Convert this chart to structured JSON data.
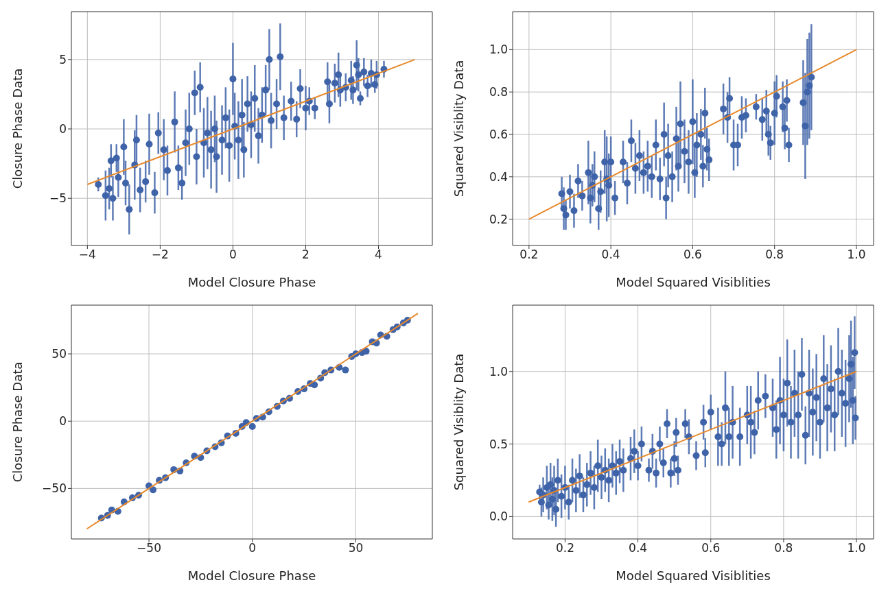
{
  "chart_data": [
    {
      "type": "scatter",
      "xlabel": "Model Closure Phase",
      "ylabel": "Closure Phase Data",
      "xlim": [
        -4.44,
        5.48
      ],
      "ylim": [
        -8.4,
        8.45
      ],
      "xticks": [
        {
          "value": -4,
          "label": "−4"
        },
        {
          "value": -2,
          "label": "−2"
        },
        0,
        2,
        4
      ],
      "yticks": [
        {
          "value": -5,
          "label": "−5"
        },
        0,
        5
      ],
      "grid": true,
      "marker": "circle",
      "series": [
        {
          "color": "#3f63a8",
          "x": [
            -3.7,
            -3.5,
            -3.4,
            -3.35,
            -3.3,
            -3.2,
            -3.15,
            -3.0,
            -2.95,
            -2.85,
            -2.7,
            -2.65,
            -2.55,
            -2.4,
            -2.3,
            -2.15,
            -2.05,
            -1.9,
            -1.8,
            -1.6,
            -1.5,
            -1.4,
            -1.3,
            -1.2,
            -1.05,
            -0.9,
            -1.0,
            -0.8,
            -0.7,
            -0.6,
            -0.5,
            -0.45,
            -0.3,
            -0.2,
            -0.1,
            0.0,
            0.05,
            0.15,
            0.25,
            0.3,
            0.4,
            0.5,
            0.6,
            0.7,
            0.8,
            0.9,
            1.0,
            1.05,
            1.2,
            1.3,
            1.4,
            1.6,
            1.75,
            1.85,
            2.0,
            2.1,
            2.25,
            2.6,
            2.65,
            2.8,
            2.9,
            2.95,
            3.1,
            3.25,
            3.3,
            3.4,
            3.45,
            3.5,
            3.6,
            3.7,
            3.8,
            3.9,
            3.95,
            4.15
          ],
          "values": [
            -4.0,
            -4.8,
            -4.3,
            -2.3,
            -5.0,
            -2.1,
            -3.5,
            -1.3,
            -3.9,
            -5.8,
            -2.6,
            -0.8,
            -4.4,
            -3.8,
            -1.1,
            -4.6,
            -0.3,
            -1.5,
            -3.0,
            0.5,
            -2.8,
            -3.9,
            -1.0,
            0.0,
            2.6,
            3.0,
            -2.0,
            -1.0,
            -0.3,
            -1.5,
            0.0,
            -2.0,
            -0.8,
            0.8,
            -1.2,
            3.6,
            0.2,
            -0.8,
            1.0,
            -1.5,
            1.8,
            0.3,
            2.2,
            -0.5,
            1.0,
            2.8,
            5.0,
            0.6,
            1.8,
            5.2,
            0.8,
            2.0,
            0.7,
            2.9,
            1.5,
            2.0,
            1.5,
            3.4,
            1.8,
            3.3,
            3.9,
            2.8,
            3.0,
            3.5,
            2.8,
            4.6,
            3.9,
            2.2,
            4.1,
            3.1,
            4.0,
            3.2,
            3.9,
            4.3
          ],
          "errors": [
            0.5,
            1.8,
            1.5,
            1.2,
            1.6,
            1.0,
            1.4,
            2.0,
            1.6,
            1.8,
            2.5,
            1.8,
            1.6,
            1.5,
            2.2,
            1.5,
            1.5,
            2.2,
            1.8,
            2.2,
            1.6,
            1.2,
            2.4,
            2.6,
            1.6,
            1.8,
            2.0,
            2.5,
            2.6,
            2.8,
            2.4,
            2.6,
            2.5,
            2.2,
            2.6,
            2.6,
            2.4,
            2.8,
            2.6,
            2.0,
            2.0,
            2.4,
            2.4,
            2.0,
            2.0,
            1.8,
            2.2,
            2.0,
            1.8,
            2.4,
            1.6,
            1.4,
            1.3,
            1.4,
            1.6,
            1.0,
            0.8,
            1.4,
            1.4,
            1.4,
            1.6,
            1.2,
            1.0,
            1.4,
            1.0,
            1.8,
            1.2,
            0.5,
            1.0,
            0.8,
            1.0,
            0.6,
            1.0,
            0.6
          ]
        },
        {
          "type": "line",
          "marker": "none",
          "color": "#e8892b",
          "x": [
            -4,
            5
          ],
          "values": [
            -4,
            5
          ]
        }
      ]
    },
    {
      "type": "scatter",
      "xlabel": "Model Squared Visiblities",
      "ylabel": "Squared Visiblity Data",
      "xlim": [
        0.16,
        1.042
      ],
      "ylim": [
        0.076,
        1.179
      ],
      "xticks": [
        0.2,
        0.4,
        0.6,
        0.8,
        {
          "value": 1,
          "label": "1.0"
        }
      ],
      "yticks": [
        0.2,
        0.4,
        0.6,
        0.8,
        {
          "value": 1,
          "label": "1.0"
        }
      ],
      "grid": true,
      "marker": "circle",
      "series": [
        {
          "color": "#3f63a8",
          "x": [
            0.28,
            0.285,
            0.29,
            0.3,
            0.31,
            0.32,
            0.33,
            0.345,
            0.35,
            0.355,
            0.36,
            0.37,
            0.375,
            0.385,
            0.39,
            0.395,
            0.4,
            0.41,
            0.43,
            0.44,
            0.45,
            0.46,
            0.47,
            0.48,
            0.49,
            0.5,
            0.51,
            0.52,
            0.53,
            0.535,
            0.54,
            0.55,
            0.56,
            0.565,
            0.57,
            0.58,
            0.59,
            0.6,
            0.605,
            0.61,
            0.62,
            0.625,
            0.63,
            0.635,
            0.64,
            0.675,
            0.685,
            0.69,
            0.7,
            0.71,
            0.72,
            0.73,
            0.755,
            0.77,
            0.78,
            0.785,
            0.79,
            0.8,
            0.805,
            0.82,
            0.825,
            0.83,
            0.835,
            0.87,
            0.875,
            0.88,
            0.885,
            0.89
          ],
          "values": [
            0.32,
            0.25,
            0.22,
            0.33,
            0.24,
            0.38,
            0.31,
            0.42,
            0.3,
            0.36,
            0.4,
            0.25,
            0.33,
            0.47,
            0.39,
            0.36,
            0.47,
            0.3,
            0.47,
            0.37,
            0.57,
            0.44,
            0.5,
            0.42,
            0.45,
            0.4,
            0.55,
            0.39,
            0.6,
            0.3,
            0.5,
            0.4,
            0.58,
            0.45,
            0.65,
            0.52,
            0.47,
            0.66,
            0.42,
            0.55,
            0.6,
            0.45,
            0.7,
            0.53,
            0.48,
            0.72,
            0.68,
            0.77,
            0.55,
            0.55,
            0.68,
            0.69,
            0.73,
            0.67,
            0.71,
            0.6,
            0.56,
            0.7,
            0.78,
            0.73,
            0.63,
            0.76,
            0.55,
            0.75,
            0.64,
            0.8,
            0.83,
            0.87
          ],
          "errors": [
            0.08,
            0.1,
            0.07,
            0.08,
            0.08,
            0.08,
            0.07,
            0.15,
            0.12,
            0.1,
            0.12,
            0.1,
            0.1,
            0.15,
            0.2,
            0.15,
            0.12,
            0.08,
            0.1,
            0.1,
            0.1,
            0.12,
            0.12,
            0.1,
            0.12,
            0.1,
            0.12,
            0.1,
            0.15,
            0.1,
            0.15,
            0.12,
            0.15,
            0.12,
            0.2,
            0.15,
            0.15,
            0.2,
            0.12,
            0.15,
            0.12,
            0.1,
            0.12,
            0.1,
            0.1,
            0.12,
            0.12,
            0.1,
            0.12,
            0.1,
            0.1,
            0.08,
            0.06,
            0.1,
            0.1,
            0.1,
            0.08,
            0.15,
            0.1,
            0.12,
            0.1,
            0.1,
            0.08,
            0.2,
            0.25,
            0.25,
            0.25,
            0.25
          ]
        },
        {
          "type": "line",
          "marker": "none",
          "color": "#e8892b",
          "x": [
            0.2,
            1.0
          ],
          "values": [
            0.2,
            1.0
          ]
        }
      ]
    },
    {
      "type": "scatter",
      "xlabel": "Model Closure Phase",
      "ylabel": "Closure Phase Data",
      "xlim": [
        -87.5,
        87
      ],
      "ylim": [
        -87.5,
        86.2
      ],
      "xticks": [
        {
          "value": -50,
          "label": "−50"
        },
        0,
        50
      ],
      "yticks": [
        {
          "value": -50,
          "label": "−50"
        },
        0,
        50
      ],
      "grid": true,
      "marker": "circle",
      "series": [
        {
          "color": "#3f63a8",
          "x": [
            -73,
            -70,
            -68,
            -65,
            -62,
            -58,
            -55,
            -50,
            -48,
            -45,
            -42,
            -38,
            -35,
            -32,
            -28,
            -25,
            -22,
            -18,
            -15,
            -12,
            -8,
            -5,
            -3,
            0,
            2,
            5,
            8,
            12,
            15,
            18,
            22,
            25,
            28,
            30,
            33,
            35,
            38,
            42,
            45,
            48,
            50,
            53,
            55,
            58,
            60,
            62,
            65,
            68,
            70,
            73,
            75
          ],
          "values": [
            -72,
            -70,
            -66,
            -67,
            -60,
            -57,
            -55,
            -48,
            -51,
            -44,
            -42,
            -36,
            -37,
            -31,
            -26,
            -27,
            -22,
            -19,
            -16,
            -11,
            -9,
            -4,
            -1,
            -4,
            2,
            3,
            7,
            11,
            15,
            17,
            22,
            24,
            28,
            27,
            32,
            36,
            38,
            40,
            38,
            48,
            50,
            51,
            52,
            59,
            58,
            64,
            63,
            68,
            70,
            73,
            75
          ],
          "errors": [
            2,
            2,
            2,
            2,
            2,
            2,
            2,
            2,
            2,
            2,
            2,
            2,
            2,
            2,
            2,
            2,
            2,
            2,
            2,
            2,
            2,
            2,
            2,
            2,
            2,
            2,
            2,
            2,
            2,
            2,
            2,
            2,
            2,
            2,
            2,
            2,
            2,
            2,
            2,
            2,
            2,
            2,
            2,
            2,
            2,
            2,
            2,
            2,
            2,
            2,
            2
          ]
        },
        {
          "type": "line",
          "marker": "none",
          "color": "#e8892b",
          "x": [
            -80,
            80
          ],
          "values": [
            -80,
            80
          ]
        }
      ]
    },
    {
      "type": "scatter",
      "xlabel": "Model Squared Visiblities",
      "ylabel": "Squared Visiblity Data",
      "xlim": [
        0.056,
        1.047
      ],
      "ylim": [
        -0.154,
        1.457
      ],
      "xticks": [
        0.2,
        0.4,
        0.6,
        0.8,
        {
          "value": 1,
          "label": "1.0"
        }
      ],
      "yticks": [
        {
          "value": 0,
          "label": "0.0"
        },
        0.5,
        {
          "value": 1,
          "label": "1.0"
        }
      ],
      "grid": true,
      "marker": "circle",
      "series": [
        {
          "color": "#3f63a8",
          "x": [
            0.13,
            0.135,
            0.14,
            0.15,
            0.155,
            0.16,
            0.165,
            0.17,
            0.175,
            0.18,
            0.19,
            0.2,
            0.21,
            0.22,
            0.23,
            0.24,
            0.25,
            0.26,
            0.27,
            0.28,
            0.29,
            0.3,
            0.31,
            0.32,
            0.33,
            0.34,
            0.35,
            0.36,
            0.38,
            0.39,
            0.4,
            0.41,
            0.43,
            0.44,
            0.45,
            0.46,
            0.47,
            0.48,
            0.49,
            0.5,
            0.505,
            0.51,
            0.53,
            0.54,
            0.56,
            0.58,
            0.585,
            0.6,
            0.62,
            0.63,
            0.64,
            0.65,
            0.66,
            0.68,
            0.7,
            0.71,
            0.72,
            0.73,
            0.75,
            0.77,
            0.78,
            0.79,
            0.8,
            0.81,
            0.82,
            0.83,
            0.84,
            0.85,
            0.86,
            0.87,
            0.88,
            0.89,
            0.9,
            0.91,
            0.92,
            0.93,
            0.94,
            0.95,
            0.96,
            0.97,
            0.98,
            0.985,
            0.99,
            0.995,
            0.997
          ],
          "values": [
            0.17,
            0.1,
            0.15,
            0.2,
            0.08,
            0.22,
            0.12,
            0.18,
            0.05,
            0.25,
            0.14,
            0.2,
            0.1,
            0.25,
            0.18,
            0.28,
            0.15,
            0.22,
            0.3,
            0.2,
            0.35,
            0.27,
            0.32,
            0.25,
            0.35,
            0.3,
            0.38,
            0.32,
            0.4,
            0.45,
            0.35,
            0.5,
            0.32,
            0.45,
            0.3,
            0.5,
            0.37,
            0.64,
            0.3,
            0.4,
            0.58,
            0.32,
            0.64,
            0.55,
            0.42,
            0.65,
            0.44,
            0.72,
            0.55,
            0.5,
            0.75,
            0.55,
            0.65,
            0.55,
            0.7,
            0.65,
            0.58,
            0.8,
            0.83,
            0.75,
            0.6,
            0.8,
            0.7,
            0.92,
            0.65,
            0.85,
            0.7,
            0.98,
            0.56,
            0.85,
            0.72,
            0.82,
            0.65,
            0.95,
            0.75,
            0.88,
            0.7,
            1.0,
            0.85,
            0.78,
            0.95,
            1.05,
            0.8,
            1.13,
            0.68
          ],
          "errors": [
            0.05,
            0.1,
            0.12,
            0.15,
            0.1,
            0.15,
            0.15,
            0.17,
            0.12,
            0.15,
            0.15,
            0.15,
            0.12,
            0.15,
            0.15,
            0.15,
            0.12,
            0.15,
            0.15,
            0.15,
            0.18,
            0.15,
            0.15,
            0.15,
            0.15,
            0.15,
            0.15,
            0.15,
            0.15,
            0.15,
            0.1,
            0.12,
            0.08,
            0.12,
            0.1,
            0.12,
            0.1,
            0.1,
            0.1,
            0.12,
            0.1,
            0.1,
            0.1,
            0.12,
            0.1,
            0.12,
            0.1,
            0.12,
            0.2,
            0.15,
            0.25,
            0.2,
            0.25,
            0.2,
            0.2,
            0.25,
            0.15,
            0.2,
            0.15,
            0.2,
            0.2,
            0.3,
            0.25,
            0.3,
            0.25,
            0.3,
            0.3,
            0.25,
            0.2,
            0.3,
            0.3,
            0.3,
            0.25,
            0.3,
            0.3,
            0.3,
            0.25,
            0.3,
            0.3,
            0.3,
            0.3,
            0.3,
            0.3,
            0.25,
            0.15
          ]
        },
        {
          "type": "line",
          "marker": "none",
          "color": "#e8892b",
          "x": [
            0.1,
            1.0
          ],
          "values": [
            0.1,
            1.0
          ]
        }
      ]
    }
  ]
}
